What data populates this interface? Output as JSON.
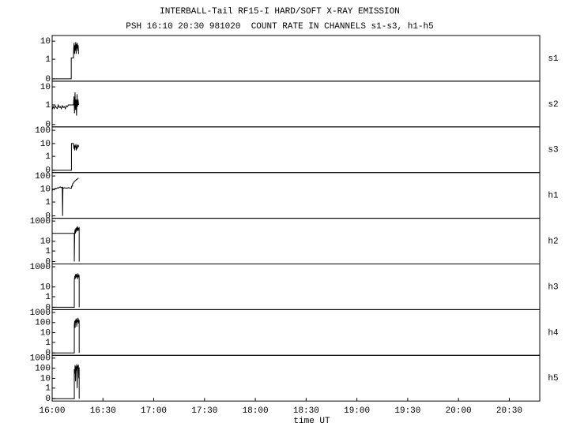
{
  "chart_data": [
    {
      "type": "line",
      "title": "INTERBALL-Tail RF15-I HARD/SOFT X-RAY EMISSION",
      "subtitle": "PSH 16:10 20:30 981020  COUNT RATE IN CHANNELS s1-s3, h1-h5",
      "xlim": [
        16,
        20.8
      ],
      "ylim": [
        0,
        15
      ],
      "yticks": [
        0,
        1,
        10
      ],
      "x": [
        16,
        16.188,
        16.188,
        16.21,
        16.212,
        16.216,
        16.22,
        16.224,
        16.228,
        16.232,
        16.236,
        16.24,
        16.244,
        16.248,
        16.252,
        16.256,
        16.26
      ],
      "series": [
        {
          "name": "s1",
          "color": "#000000",
          "values": [
            0,
            0,
            1.2,
            1.2,
            4,
            8,
            2,
            6,
            3,
            9,
            2,
            7,
            4,
            8,
            3,
            6,
            2
          ]
        }
      ]
    },
    {
      "type": "line",
      "xlim": [
        16,
        20.8
      ],
      "ylim": [
        0,
        15
      ],
      "yticks": [
        0,
        1,
        10
      ],
      "x": [
        16,
        16.01,
        16.02,
        16.03,
        16.04,
        16.05,
        16.06,
        16.07,
        16.08,
        16.09,
        16.1,
        16.11,
        16.12,
        16.13,
        16.14,
        16.15,
        16.16,
        16.21,
        16.215,
        16.22,
        16.225,
        16.23,
        16.235,
        16.24,
        16.245,
        16.25,
        16.255,
        16.26
      ],
      "series": [
        {
          "name": "s2",
          "color": "#000000",
          "values": [
            0.5,
            0.8,
            0.6,
            0.9,
            0.7,
            0.6,
            1,
            0.7,
            0.8,
            0.6,
            0.9,
            0.7,
            0.8,
            0.6,
            0.9,
            0.8,
            1,
            1,
            3,
            0.3,
            5,
            0.5,
            2,
            0.2,
            4,
            0.8,
            2,
            1
          ]
        }
      ]
    },
    {
      "type": "line",
      "xlim": [
        16,
        20.8
      ],
      "ylim": [
        0,
        120
      ],
      "yticks": [
        0,
        1,
        10,
        100
      ],
      "x": [
        16,
        16.19,
        16.19,
        16.21,
        16.214,
        16.218,
        16.222,
        16.226,
        16.23,
        16.234,
        16.238,
        16.242,
        16.246,
        16.25,
        16.254,
        16.258,
        16.262
      ],
      "series": [
        {
          "name": "s3",
          "color": "#000000",
          "values": [
            0,
            0,
            10,
            10,
            4,
            8,
            3,
            7,
            5,
            9,
            3,
            6,
            4,
            8,
            5,
            7,
            6
          ]
        }
      ]
    },
    {
      "type": "line",
      "xlim": [
        16,
        20.8
      ],
      "ylim": [
        0,
        120
      ],
      "yticks": [
        0,
        1,
        10,
        100
      ],
      "x": [
        16,
        16.01,
        16.02,
        16.03,
        16.04,
        16.05,
        16.06,
        16.07,
        16.08,
        16.09,
        16.1,
        16.103,
        16.106,
        16.11,
        16.12,
        16.14,
        16.16,
        16.18,
        16.19,
        16.19,
        16.2,
        16.2,
        16.21,
        16.22,
        16.23,
        16.24,
        16.25,
        16.26
      ],
      "series": [
        {
          "name": "h1",
          "color": "#000000",
          "values": [
            8,
            10,
            9,
            12,
            11,
            13,
            12,
            14,
            15,
            13,
            14,
            0,
            13,
            12,
            13,
            12,
            13,
            12,
            12,
            17,
            17,
            25,
            30,
            40,
            45,
            55,
            60,
            70
          ]
        }
      ]
    },
    {
      "type": "line",
      "xlim": [
        16,
        20.8
      ],
      "ylim": [
        0,
        1100
      ],
      "yticks": [
        0,
        1,
        10,
        1000
      ],
      "x": [
        16,
        16.218,
        16.218,
        16.222,
        16.226,
        16.23,
        16.234,
        16.238,
        16.242,
        16.246,
        16.25,
        16.254,
        16.258,
        16.262,
        16.266,
        16.266
      ],
      "series": [
        {
          "name": "h2",
          "color": "#000000",
          "values": [
            60,
            60,
            0,
            80,
            150,
            60,
            200,
            90,
            250,
            120,
            300,
            100,
            200,
            150,
            250,
            0
          ]
        }
      ]
    },
    {
      "type": "line",
      "xlim": [
        16,
        20.8
      ],
      "ylim": [
        0,
        1100
      ],
      "yticks": [
        0,
        1,
        10,
        1000
      ],
      "x": [
        16,
        16.218,
        16.218,
        16.222,
        16.226,
        16.23,
        16.234,
        16.238,
        16.242,
        16.246,
        16.25,
        16.254,
        16.258,
        16.262,
        16.266,
        16.266
      ],
      "series": [
        {
          "name": "h3",
          "color": "#000000",
          "values": [
            0,
            0,
            40,
            120,
            60,
            180,
            80,
            200,
            100,
            150,
            60,
            220,
            90,
            160,
            120,
            0
          ]
        }
      ]
    },
    {
      "type": "line",
      "xlim": [
        16,
        20.8
      ],
      "ylim": [
        0,
        1100
      ],
      "yticks": [
        0,
        1,
        10,
        100,
        1000
      ],
      "x": [
        16,
        16.218,
        16.218,
        16.222,
        16.226,
        16.23,
        16.234,
        16.238,
        16.242,
        16.246,
        16.25,
        16.254,
        16.258,
        16.262,
        16.266,
        16.266
      ],
      "series": [
        {
          "name": "h4",
          "color": "#000000",
          "values": [
            0,
            0,
            60,
            150,
            30,
            200,
            100,
            250,
            40,
            180,
            120,
            300,
            80,
            200,
            150,
            0
          ]
        }
      ]
    },
    {
      "type": "line",
      "xlim": [
        16,
        20.8
      ],
      "ylim": [
        0,
        1100
      ],
      "yticks": [
        0,
        1,
        10,
        100,
        1000
      ],
      "xlabel": "time UT",
      "xticks": [
        {
          "value": 16,
          "label": "16:00"
        },
        {
          "value": 16.5,
          "label": "16:30"
        },
        {
          "value": 17,
          "label": "17:00"
        },
        {
          "value": 17.5,
          "label": "17:30"
        },
        {
          "value": 18,
          "label": "18:00"
        },
        {
          "value": 18.5,
          "label": "18:30"
        },
        {
          "value": 19,
          "label": "19:00"
        },
        {
          "value": 19.5,
          "label": "19:30"
        },
        {
          "value": 20,
          "label": "20:00"
        },
        {
          "value": 20.5,
          "label": "20:30"
        }
      ],
      "x": [
        16,
        16.218,
        16.218,
        16.222,
        16.226,
        16.23,
        16.234,
        16.238,
        16.242,
        16.246,
        16.25,
        16.254,
        16.258,
        16.262,
        16.266,
        16.266
      ],
      "series": [
        {
          "name": "h5",
          "color": "#000000",
          "values": [
            0,
            0,
            80,
            30,
            200,
            5,
            150,
            60,
            250,
            1,
            180,
            90,
            220,
            10,
            120,
            0
          ]
        }
      ]
    }
  ]
}
